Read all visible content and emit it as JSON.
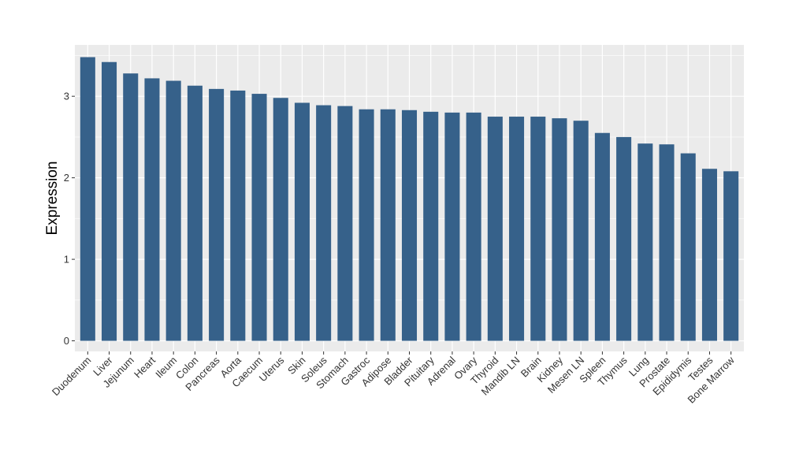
{
  "chart_data": {
    "type": "bar",
    "ylabel": "Expression",
    "xlabel": "",
    "categories": [
      "Duodenum",
      "Liver",
      "Jejunum",
      "Heart",
      "Ileum",
      "Colon",
      "Pancreas",
      "Aorta",
      "Caecum",
      "Uterus",
      "Skin",
      "Soleus",
      "Stomach",
      "Gastroc",
      "Adipose",
      "Bladder",
      "Pituitary",
      "Adrenal",
      "Ovary",
      "Thyroid",
      "Mandib LN",
      "Brain",
      "Kidney",
      "Mesen LN",
      "Spleen",
      "Thymus",
      "Lung",
      "Prostate",
      "Epididymis",
      "Testes",
      "Bone Marrow"
    ],
    "values": [
      3.48,
      3.42,
      3.28,
      3.22,
      3.19,
      3.13,
      3.09,
      3.07,
      3.03,
      2.98,
      2.92,
      2.89,
      2.88,
      2.84,
      2.84,
      2.83,
      2.81,
      2.8,
      2.8,
      2.75,
      2.75,
      2.75,
      2.73,
      2.7,
      2.55,
      2.5,
      2.42,
      2.41,
      2.3,
      2.11,
      2.08
    ],
    "ylim": [
      -0.13,
      3.63
    ],
    "yticks": [
      0,
      1,
      2,
      3
    ],
    "grid": true,
    "bar_color": "#36618a",
    "panel_background": "#ebebeb",
    "grid_color": "#ffffff"
  }
}
